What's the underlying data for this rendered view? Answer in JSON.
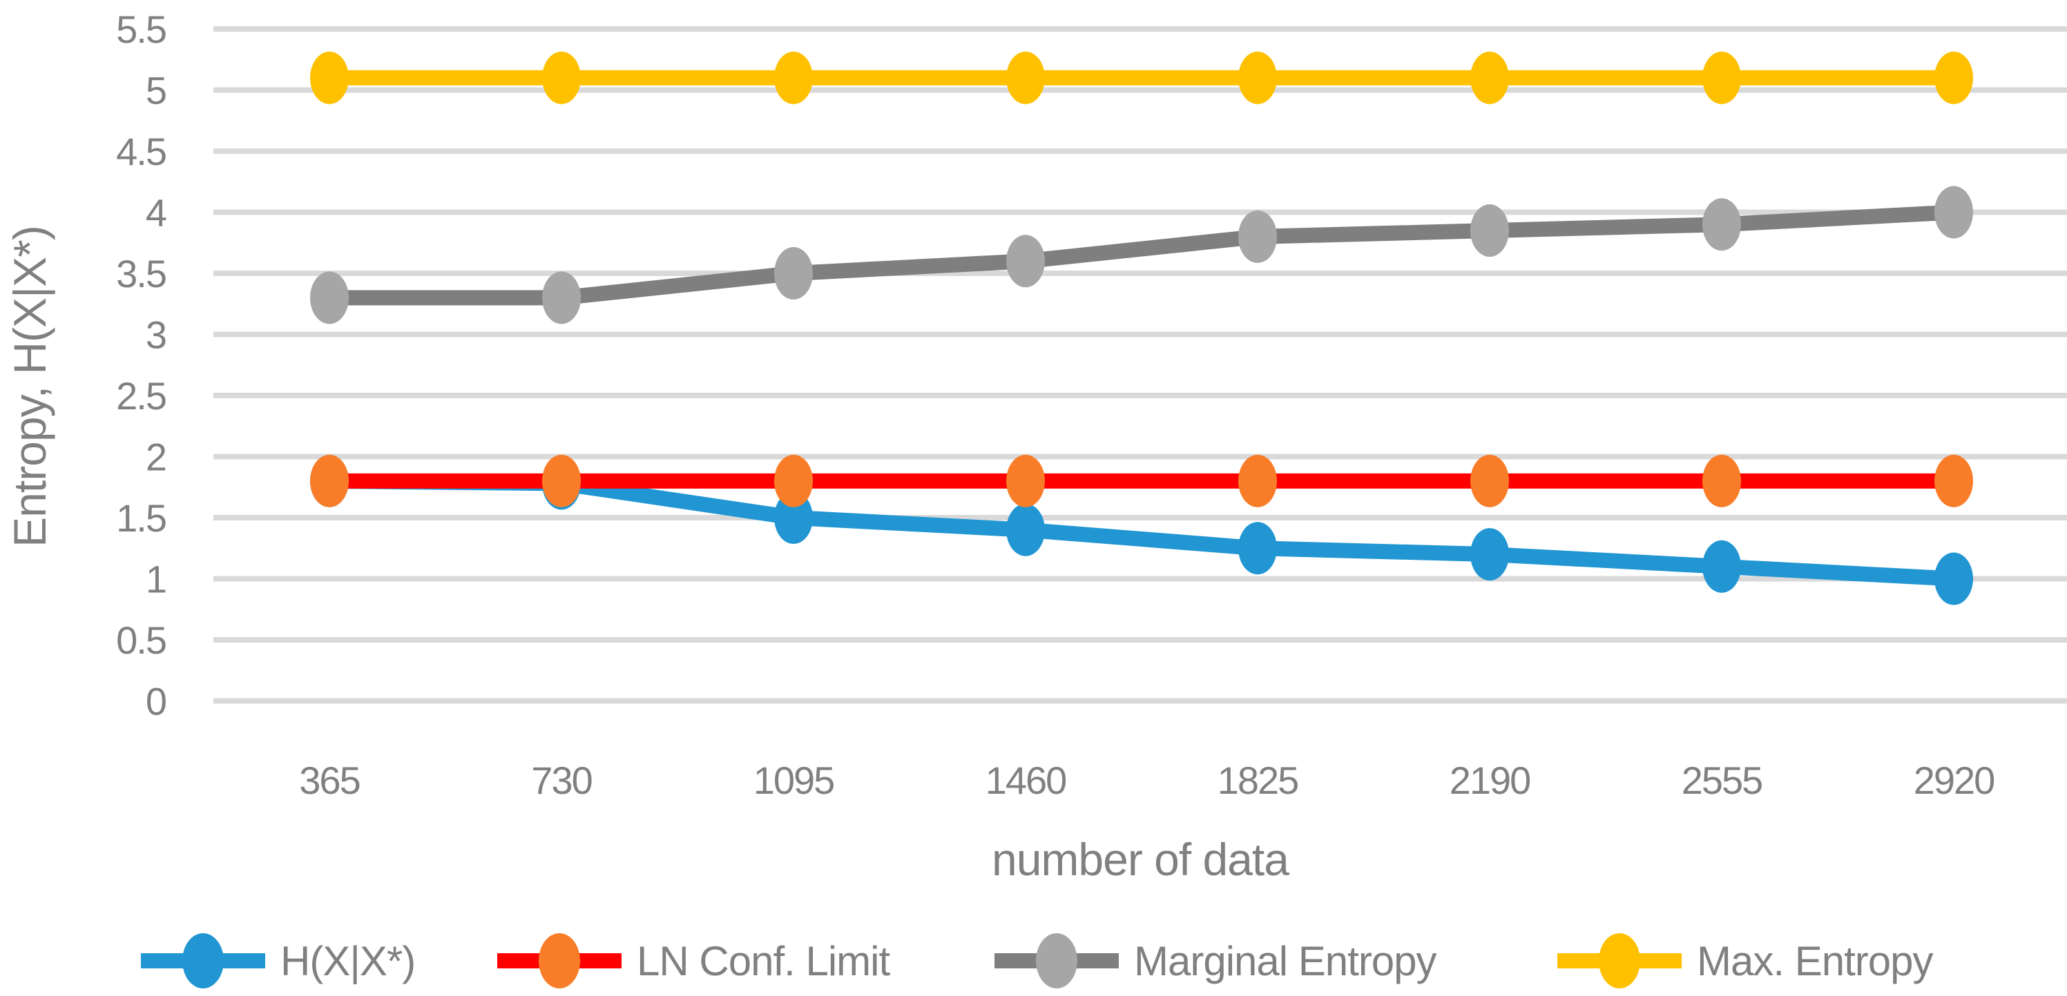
{
  "chart_data": {
    "type": "line",
    "title": "",
    "xlabel": "number of data",
    "ylabel": "Entropy, H(X|X*)",
    "categories": [
      "365",
      "730",
      "1095",
      "1460",
      "1825",
      "2190",
      "2555",
      "2920"
    ],
    "series": [
      {
        "name": "H(X|X*)",
        "values": [
          1.8,
          1.78,
          1.5,
          1.4,
          1.25,
          1.2,
          1.1,
          1.0
        ],
        "line_color": "#2196D3",
        "marker_color": "#2196D3"
      },
      {
        "name": "LN Conf. Limit",
        "values": [
          1.8,
          1.8,
          1.8,
          1.8,
          1.8,
          1.8,
          1.8,
          1.8
        ],
        "line_color": "#FF0000",
        "marker_color": "#F97D28"
      },
      {
        "name": "Marginal Entropy",
        "values": [
          3.3,
          3.3,
          3.5,
          3.6,
          3.8,
          3.85,
          3.9,
          4.0
        ],
        "line_color": "#7F7F7F",
        "marker_color": "#A6A6A6"
      },
      {
        "name": "Max. Entropy",
        "values": [
          5.1,
          5.1,
          5.1,
          5.1,
          5.1,
          5.1,
          5.1,
          5.1
        ],
        "line_color": "#FFC000",
        "marker_color": "#FFC000"
      }
    ],
    "ylim": [
      0,
      5.5
    ],
    "yticks": [
      "0",
      "0.5",
      "1",
      "1.5",
      "2",
      "2.5",
      "3",
      "3.5",
      "4",
      "4.5",
      "5",
      "5.5"
    ],
    "grid": true,
    "gridline_color": "#D9D9D9",
    "text_color": "#808080",
    "legend_position": "bottom"
  }
}
